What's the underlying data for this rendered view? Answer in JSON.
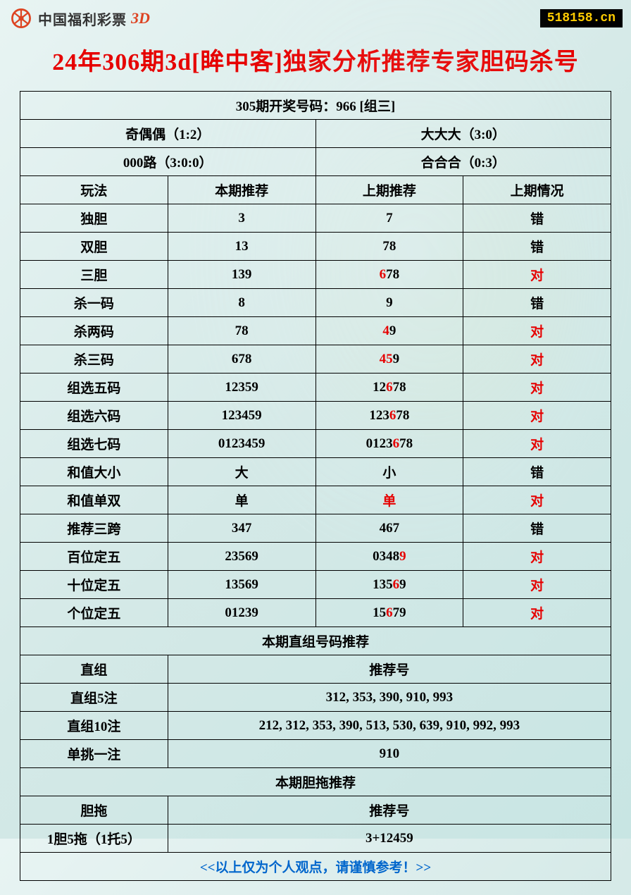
{
  "header": {
    "logo_text": "中国福利彩票",
    "logo_3d": "3D",
    "url": "518158.cn"
  },
  "title": "24年306期3d[眸中客]独家分析推荐专家胆码杀号",
  "draw_info": "305期开奖号码：966 [组三]",
  "summary": {
    "r1c1": "奇偶偶（1:2）",
    "r1c2": "大大大（3:0）",
    "r2c1": "000路（3:0:0）",
    "r2c2": "合合合（0:3）"
  },
  "table_headers": {
    "h1": "玩法",
    "h2": "本期推荐",
    "h3": "上期推荐",
    "h4": "上期情况"
  },
  "rows": [
    {
      "name": "独胆",
      "current": "3",
      "prev": [
        {
          "t": "7",
          "r": false
        }
      ],
      "result": "错",
      "result_red": false
    },
    {
      "name": "双胆",
      "current": "13",
      "prev": [
        {
          "t": "78",
          "r": false
        }
      ],
      "result": "错",
      "result_red": false
    },
    {
      "name": "三胆",
      "current": "139",
      "prev": [
        {
          "t": "6",
          "r": true
        },
        {
          "t": "78",
          "r": false
        }
      ],
      "result": "对",
      "result_red": true
    },
    {
      "name": "杀一码",
      "current": "8",
      "prev": [
        {
          "t": "9",
          "r": false
        }
      ],
      "result": "错",
      "result_red": false
    },
    {
      "name": "杀两码",
      "current": "78",
      "prev": [
        {
          "t": "4",
          "r": true
        },
        {
          "t": "9",
          "r": false
        }
      ],
      "result": "对",
      "result_red": true
    },
    {
      "name": "杀三码",
      "current": "678",
      "prev": [
        {
          "t": "45",
          "r": true
        },
        {
          "t": "9",
          "r": false
        }
      ],
      "result": "对",
      "result_red": true
    },
    {
      "name": "组选五码",
      "current": "12359",
      "prev": [
        {
          "t": "12",
          "r": false
        },
        {
          "t": "6",
          "r": true
        },
        {
          "t": "78",
          "r": false
        }
      ],
      "result": "对",
      "result_red": true
    },
    {
      "name": "组选六码",
      "current": "123459",
      "prev": [
        {
          "t": "123",
          "r": false
        },
        {
          "t": "6",
          "r": true
        },
        {
          "t": "78",
          "r": false
        }
      ],
      "result": "对",
      "result_red": true
    },
    {
      "name": "组选七码",
      "current": "0123459",
      "prev": [
        {
          "t": "0123",
          "r": false
        },
        {
          "t": "6",
          "r": true
        },
        {
          "t": "78",
          "r": false
        }
      ],
      "result": "对",
      "result_red": true
    },
    {
      "name": "和值大小",
      "current": "大",
      "prev": [
        {
          "t": "小",
          "r": false
        }
      ],
      "result": "错",
      "result_red": false
    },
    {
      "name": "和值单双",
      "current": "单",
      "prev": [
        {
          "t": "单",
          "r": true
        }
      ],
      "result": "对",
      "result_red": true
    },
    {
      "name": "推荐三跨",
      "current": "347",
      "prev": [
        {
          "t": "467",
          "r": false
        }
      ],
      "result": "错",
      "result_red": false
    },
    {
      "name": "百位定五",
      "current": "23569",
      "prev": [
        {
          "t": "0348",
          "r": false
        },
        {
          "t": "9",
          "r": true
        }
      ],
      "result": "对",
      "result_red": true
    },
    {
      "name": "十位定五",
      "current": "13569",
      "prev": [
        {
          "t": "135",
          "r": false
        },
        {
          "t": "6",
          "r": true
        },
        {
          "t": "9",
          "r": false
        }
      ],
      "result": "对",
      "result_red": true
    },
    {
      "name": "个位定五",
      "current": "01239",
      "prev": [
        {
          "t": "15",
          "r": false
        },
        {
          "t": "6",
          "r": true
        },
        {
          "t": "79",
          "r": false
        }
      ],
      "result": "对",
      "result_red": true
    }
  ],
  "section2_title": "本期直组号码推荐",
  "section2_headers": {
    "h1": "直组",
    "h2": "推荐号"
  },
  "section2_rows": [
    {
      "name": "直组5注",
      "value": "312, 353, 390, 910, 993"
    },
    {
      "name": "直组10注",
      "value": "212, 312, 353, 390, 513, 530, 639, 910, 992, 993"
    },
    {
      "name": "单挑一注",
      "value": "910"
    }
  ],
  "section3_title": "本期胆拖推荐",
  "section3_headers": {
    "h1": "胆拖",
    "h2": "推荐号"
  },
  "section3_rows": [
    {
      "name": "1胆5拖（1托5）",
      "value": "3+12459"
    }
  ],
  "footer": "<<以上仅为个人观点，请谨慎参考！>>"
}
